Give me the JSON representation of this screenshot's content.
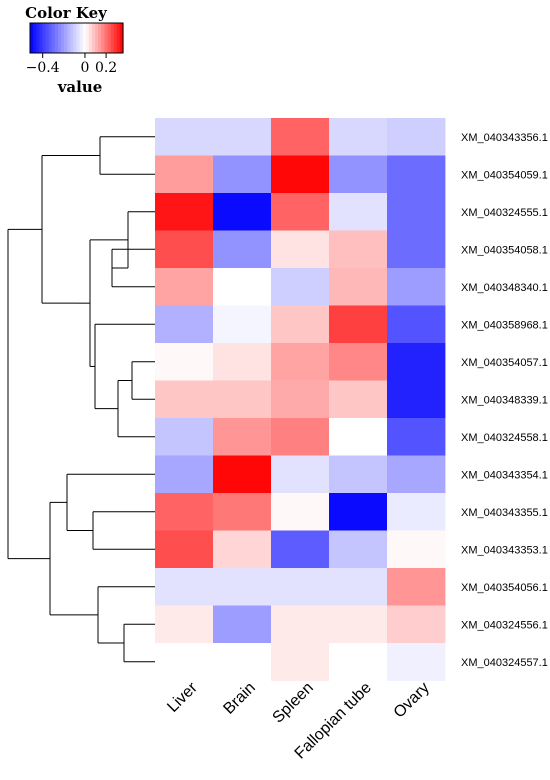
{
  "chart_data": {
    "type": "heatmap",
    "color_key": {
      "title": "Color Key",
      "xlabel": "value",
      "ticks": [
        {
          "value": -0.4,
          "label": "−0.4"
        },
        {
          "value": 0,
          "label": "0"
        },
        {
          "value": 0.2,
          "label": "0.2"
        }
      ],
      "range": [
        -0.52,
        0.36
      ],
      "colors": {
        "low": "#0000ff",
        "mid": "#ffffff",
        "high": "#ff0000"
      }
    },
    "columns": [
      "Liver",
      "Brain",
      "Spleen",
      "Fallopian tube",
      "Ovary"
    ],
    "rows": [
      "XM_040343356.1",
      "XM_040354059.1",
      "XM_040324555.1",
      "XM_040354058.1",
      "XM_040348340.1",
      "XM_040358968.1",
      "XM_040354057.1",
      "XM_040348339.1",
      "XM_040324558.1",
      "XM_040343354.1",
      "XM_040343355.1",
      "XM_040343353.1",
      "XM_040354056.1",
      "XM_040324556.1",
      "XM_040324557.1"
    ],
    "values": [
      [
        -0.08,
        -0.08,
        0.22,
        -0.08,
        -0.1
      ],
      [
        0.14,
        -0.22,
        0.35,
        -0.22,
        -0.3
      ],
      [
        0.33,
        -0.5,
        0.22,
        -0.06,
        -0.3
      ],
      [
        0.25,
        -0.22,
        0.04,
        0.09,
        -0.3
      ],
      [
        0.13,
        0.0,
        -0.1,
        0.1,
        -0.2
      ],
      [
        -0.16,
        -0.02,
        0.08,
        0.27,
        -0.35
      ],
      [
        0.01,
        0.04,
        0.13,
        0.17,
        -0.45
      ],
      [
        0.08,
        0.08,
        0.12,
        0.08,
        -0.45
      ],
      [
        -0.12,
        0.15,
        0.18,
        0.0,
        -0.35
      ],
      [
        -0.18,
        0.35,
        -0.06,
        -0.12,
        -0.18
      ],
      [
        0.22,
        0.19,
        0.01,
        -0.5,
        -0.04
      ],
      [
        0.25,
        0.06,
        -0.33,
        -0.12,
        0.01
      ],
      [
        -0.06,
        -0.06,
        -0.06,
        -0.06,
        0.15
      ],
      [
        0.03,
        -0.2,
        0.03,
        0.03,
        0.07
      ],
      [
        0.0,
        0.0,
        0.03,
        0.0,
        -0.03
      ]
    ]
  }
}
